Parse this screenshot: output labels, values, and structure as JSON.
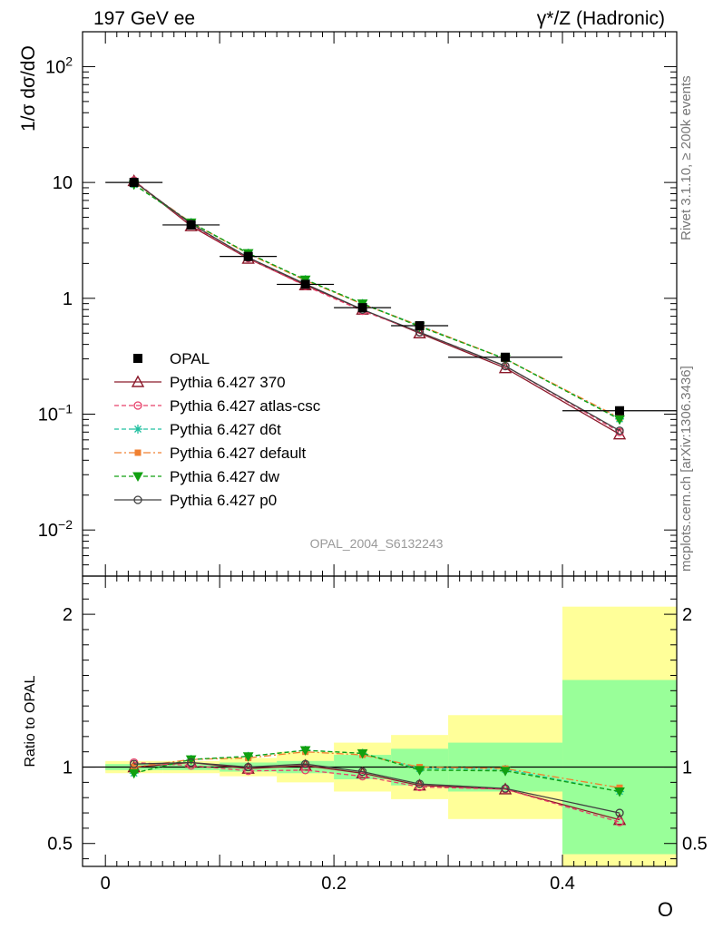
{
  "header": {
    "title_left": "197 GeV ee",
    "title_right": "γ*/Z (Hadronic)",
    "side_top": "Rivet 3.1.10, ≥ 200k events",
    "side_bottom": "mcplots.cern.ch [arXiv:1306.3436]",
    "analysis_id": "OPAL_2004_S6132243"
  },
  "colors": {
    "data": "#000000",
    "p370": "#8b1a2b",
    "atlas": "#e8406a",
    "d6t": "#20c0a0",
    "default": "#f08030",
    "dw": "#10a010",
    "p0": "#404040",
    "band_inner": "#99ff99",
    "band_outer": "#ffff99"
  },
  "chart_data": [
    {
      "type": "line",
      "panel": "main",
      "ylabel": "1/σ dσ/dO",
      "yscale": "log",
      "ylim": [
        0.004,
        200
      ],
      "xlim": [
        -0.02,
        0.5
      ],
      "yticks": [
        {
          "value": 0.01,
          "base": "10",
          "exp": "−2"
        },
        {
          "value": 0.1,
          "base": "10",
          "exp": "−1"
        },
        {
          "value": 1,
          "base": "1",
          "exp": ""
        },
        {
          "value": 10,
          "base": "10",
          "exp": ""
        },
        {
          "value": 100,
          "base": "10",
          "exp": "2"
        }
      ],
      "x": [
        0.025,
        0.075,
        0.125,
        0.175,
        0.225,
        0.275,
        0.35,
        0.45
      ],
      "data": {
        "name": "OPAL",
        "values": [
          10.0,
          4.3,
          2.3,
          1.32,
          0.83,
          0.58,
          0.31,
          0.107
        ],
        "xerr": [
          0.025,
          0.025,
          0.025,
          0.025,
          0.025,
          0.025,
          0.05,
          0.05
        ]
      },
      "series": [
        {
          "key": "p370",
          "name": "Pythia 6.427 370",
          "style": "solid",
          "marker": "triangle-up-open",
          "values": [
            10.3,
            4.2,
            2.2,
            1.3,
            0.8,
            0.5,
            0.25,
            0.067
          ]
        },
        {
          "key": "atlas",
          "name": "Pythia 6.427 atlas-csc",
          "style": "dashed",
          "marker": "circle-open",
          "values": [
            10.4,
            4.3,
            2.22,
            1.28,
            0.78,
            0.51,
            0.26,
            0.07
          ]
        },
        {
          "key": "d6t",
          "name": "Pythia 6.427 d6t",
          "style": "dashed",
          "marker": "asterisk",
          "values": [
            9.6,
            4.5,
            2.45,
            1.45,
            0.9,
            0.58,
            0.3,
            0.091
          ]
        },
        {
          "key": "default",
          "name": "Pythia 6.427 default",
          "style": "dashdot",
          "marker": "square-filled",
          "values": [
            10.0,
            4.5,
            2.42,
            1.43,
            0.89,
            0.58,
            0.3,
            0.093
          ]
        },
        {
          "key": "dw",
          "name": "Pythia 6.427 dw",
          "style": "dashed",
          "marker": "triangle-down-filled",
          "values": [
            9.6,
            4.5,
            2.45,
            1.45,
            0.9,
            0.57,
            0.3,
            0.09
          ]
        },
        {
          "key": "p0",
          "name": "Pythia 6.427 p0",
          "style": "solid",
          "marker": "circle-open",
          "values": [
            10.2,
            4.4,
            2.25,
            1.33,
            0.8,
            0.51,
            0.26,
            0.072
          ]
        }
      ],
      "legend_placement": "middle-left"
    },
    {
      "type": "line",
      "panel": "ratio",
      "ylabel": "Ratio to OPAL",
      "xlabel": "O",
      "ylim": [
        0.35,
        2.25
      ],
      "xlim": [
        -0.02,
        0.5
      ],
      "yticks": [
        0.5,
        1,
        2
      ],
      "ytick_labels": [
        "0.5",
        "1",
        "2"
      ],
      "xticks": [
        0,
        0.2,
        0.4
      ],
      "xtick_labels": [
        "0",
        "0.2",
        "0.4"
      ],
      "bins": [
        {
          "xlo": 0.0,
          "xhi": 0.05,
          "inner": [
            0.98,
            1.02
          ],
          "outer": [
            0.96,
            1.04
          ]
        },
        {
          "xlo": 0.05,
          "xhi": 0.1,
          "inner": [
            0.98,
            1.02
          ],
          "outer": [
            0.96,
            1.04
          ]
        },
        {
          "xlo": 0.1,
          "xhi": 0.15,
          "inner": [
            0.97,
            1.03
          ],
          "outer": [
            0.94,
            1.06
          ]
        },
        {
          "xlo": 0.15,
          "xhi": 0.2,
          "inner": [
            0.96,
            1.04
          ],
          "outer": [
            0.9,
            1.1
          ]
        },
        {
          "xlo": 0.2,
          "xhi": 0.25,
          "inner": [
            0.92,
            1.08
          ],
          "outer": [
            0.84,
            1.16
          ]
        },
        {
          "xlo": 0.25,
          "xhi": 0.3,
          "inner": [
            0.88,
            1.12
          ],
          "outer": [
            0.79,
            1.21
          ]
        },
        {
          "xlo": 0.3,
          "xhi": 0.4,
          "inner": [
            0.84,
            1.16
          ],
          "outer": [
            0.66,
            1.34
          ]
        },
        {
          "xlo": 0.4,
          "xhi": 0.5,
          "inner": [
            0.43,
            1.57
          ],
          "outer": [
            0.35,
            2.05
          ]
        }
      ],
      "series": [
        {
          "key": "p370",
          "values": [
            1.0,
            1.03,
            0.99,
            1.01,
            0.96,
            0.88,
            0.855,
            0.655
          ]
        },
        {
          "key": "atlas",
          "values": [
            1.03,
            1.01,
            0.975,
            0.98,
            0.94,
            0.87,
            0.855,
            0.64
          ]
        },
        {
          "key": "d6t",
          "values": [
            0.96,
            1.05,
            1.07,
            1.11,
            1.09,
            0.99,
            0.985,
            0.84
          ]
        },
        {
          "key": "default",
          "values": [
            1.0,
            1.05,
            1.06,
            1.1,
            1.08,
            1.0,
            0.99,
            0.865
          ]
        },
        {
          "key": "dw",
          "values": [
            0.96,
            1.05,
            1.07,
            1.11,
            1.09,
            0.98,
            0.975,
            0.84
          ]
        },
        {
          "key": "p0",
          "values": [
            1.02,
            1.03,
            1.0,
            1.02,
            0.97,
            0.89,
            0.86,
            0.7
          ]
        }
      ]
    }
  ]
}
